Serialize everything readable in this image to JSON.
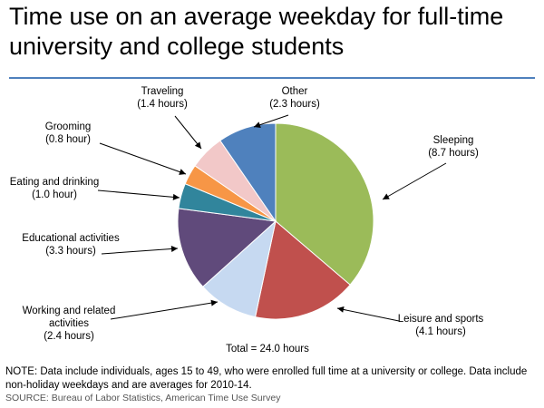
{
  "title": "Time use on an average weekday for full-time university and college students",
  "note": "NOTE: Data include individuals, ages 15 to 49, who were enrolled full time at a university or college. Data include non-holiday weekdays and are averages for 2010-14.",
  "source": "SOURCE: Bureau of Labor Statistics, American Time Use Survey",
  "chart_data": {
    "type": "pie",
    "total_label": "Total = 24.0 hours",
    "slices": [
      {
        "name": "Sleeping",
        "value_label": "(8.7 hours)",
        "value": 8.7,
        "color": "#9bbb59"
      },
      {
        "name": "Leisure and sports",
        "value_label": "(4.1 hours)",
        "value": 4.1,
        "color": "#c0504d"
      },
      {
        "name": "Working and related activities",
        "value_label": "(2.4 hours)",
        "value": 2.4,
        "color": "#c6d9f1"
      },
      {
        "name": "Educational activities",
        "value_label": "(3.3 hours)",
        "value": 3.3,
        "color": "#604a7b"
      },
      {
        "name": "Eating and drinking",
        "value_label": "(1.0 hour)",
        "value": 1.0,
        "color": "#31859c"
      },
      {
        "name": "Grooming",
        "value_label": "(0.8 hour)",
        "value": 0.8,
        "color": "#f79646"
      },
      {
        "name": "Traveling",
        "value_label": "(1.4 hours)",
        "value": 1.4,
        "color": "#f2c8c8"
      },
      {
        "name": "Other",
        "value_label": "(2.3 hours)",
        "value": 2.3,
        "color": "#4f81bd"
      }
    ]
  }
}
